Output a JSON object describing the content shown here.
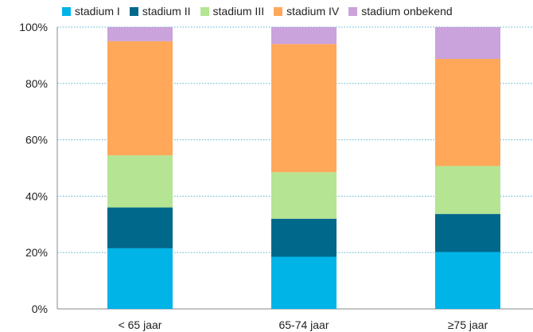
{
  "chart_data": {
    "type": "bar",
    "stacked": true,
    "categories": [
      "< 65 jaar",
      "65-74 jaar",
      "≥75 jaar"
    ],
    "series": [
      {
        "name": "stadium I",
        "color": "#00b4e8",
        "values": [
          21.5,
          18.5,
          20.2
        ]
      },
      {
        "name": "stadium II",
        "color": "#00688b",
        "values": [
          14.5,
          13.5,
          13.5
        ]
      },
      {
        "name": "stadium III",
        "color": "#b5e593",
        "values": [
          18.5,
          16.5,
          17.0
        ]
      },
      {
        "name": "stadium IV",
        "color": "#ffa85a",
        "values": [
          40.5,
          45.5,
          38.0
        ]
      },
      {
        "name": "stadium onbekend",
        "color": "#caa2dc",
        "values": [
          5.0,
          6.0,
          11.3
        ]
      }
    ],
    "yticks": [
      "0%",
      "20%",
      "40%",
      "60%",
      "80%",
      "100%"
    ],
    "ylim": [
      0,
      100
    ],
    "grid": true,
    "grid_color": "#4fb3cf",
    "legend_position": "top",
    "title": "",
    "xlabel": "",
    "ylabel": ""
  }
}
